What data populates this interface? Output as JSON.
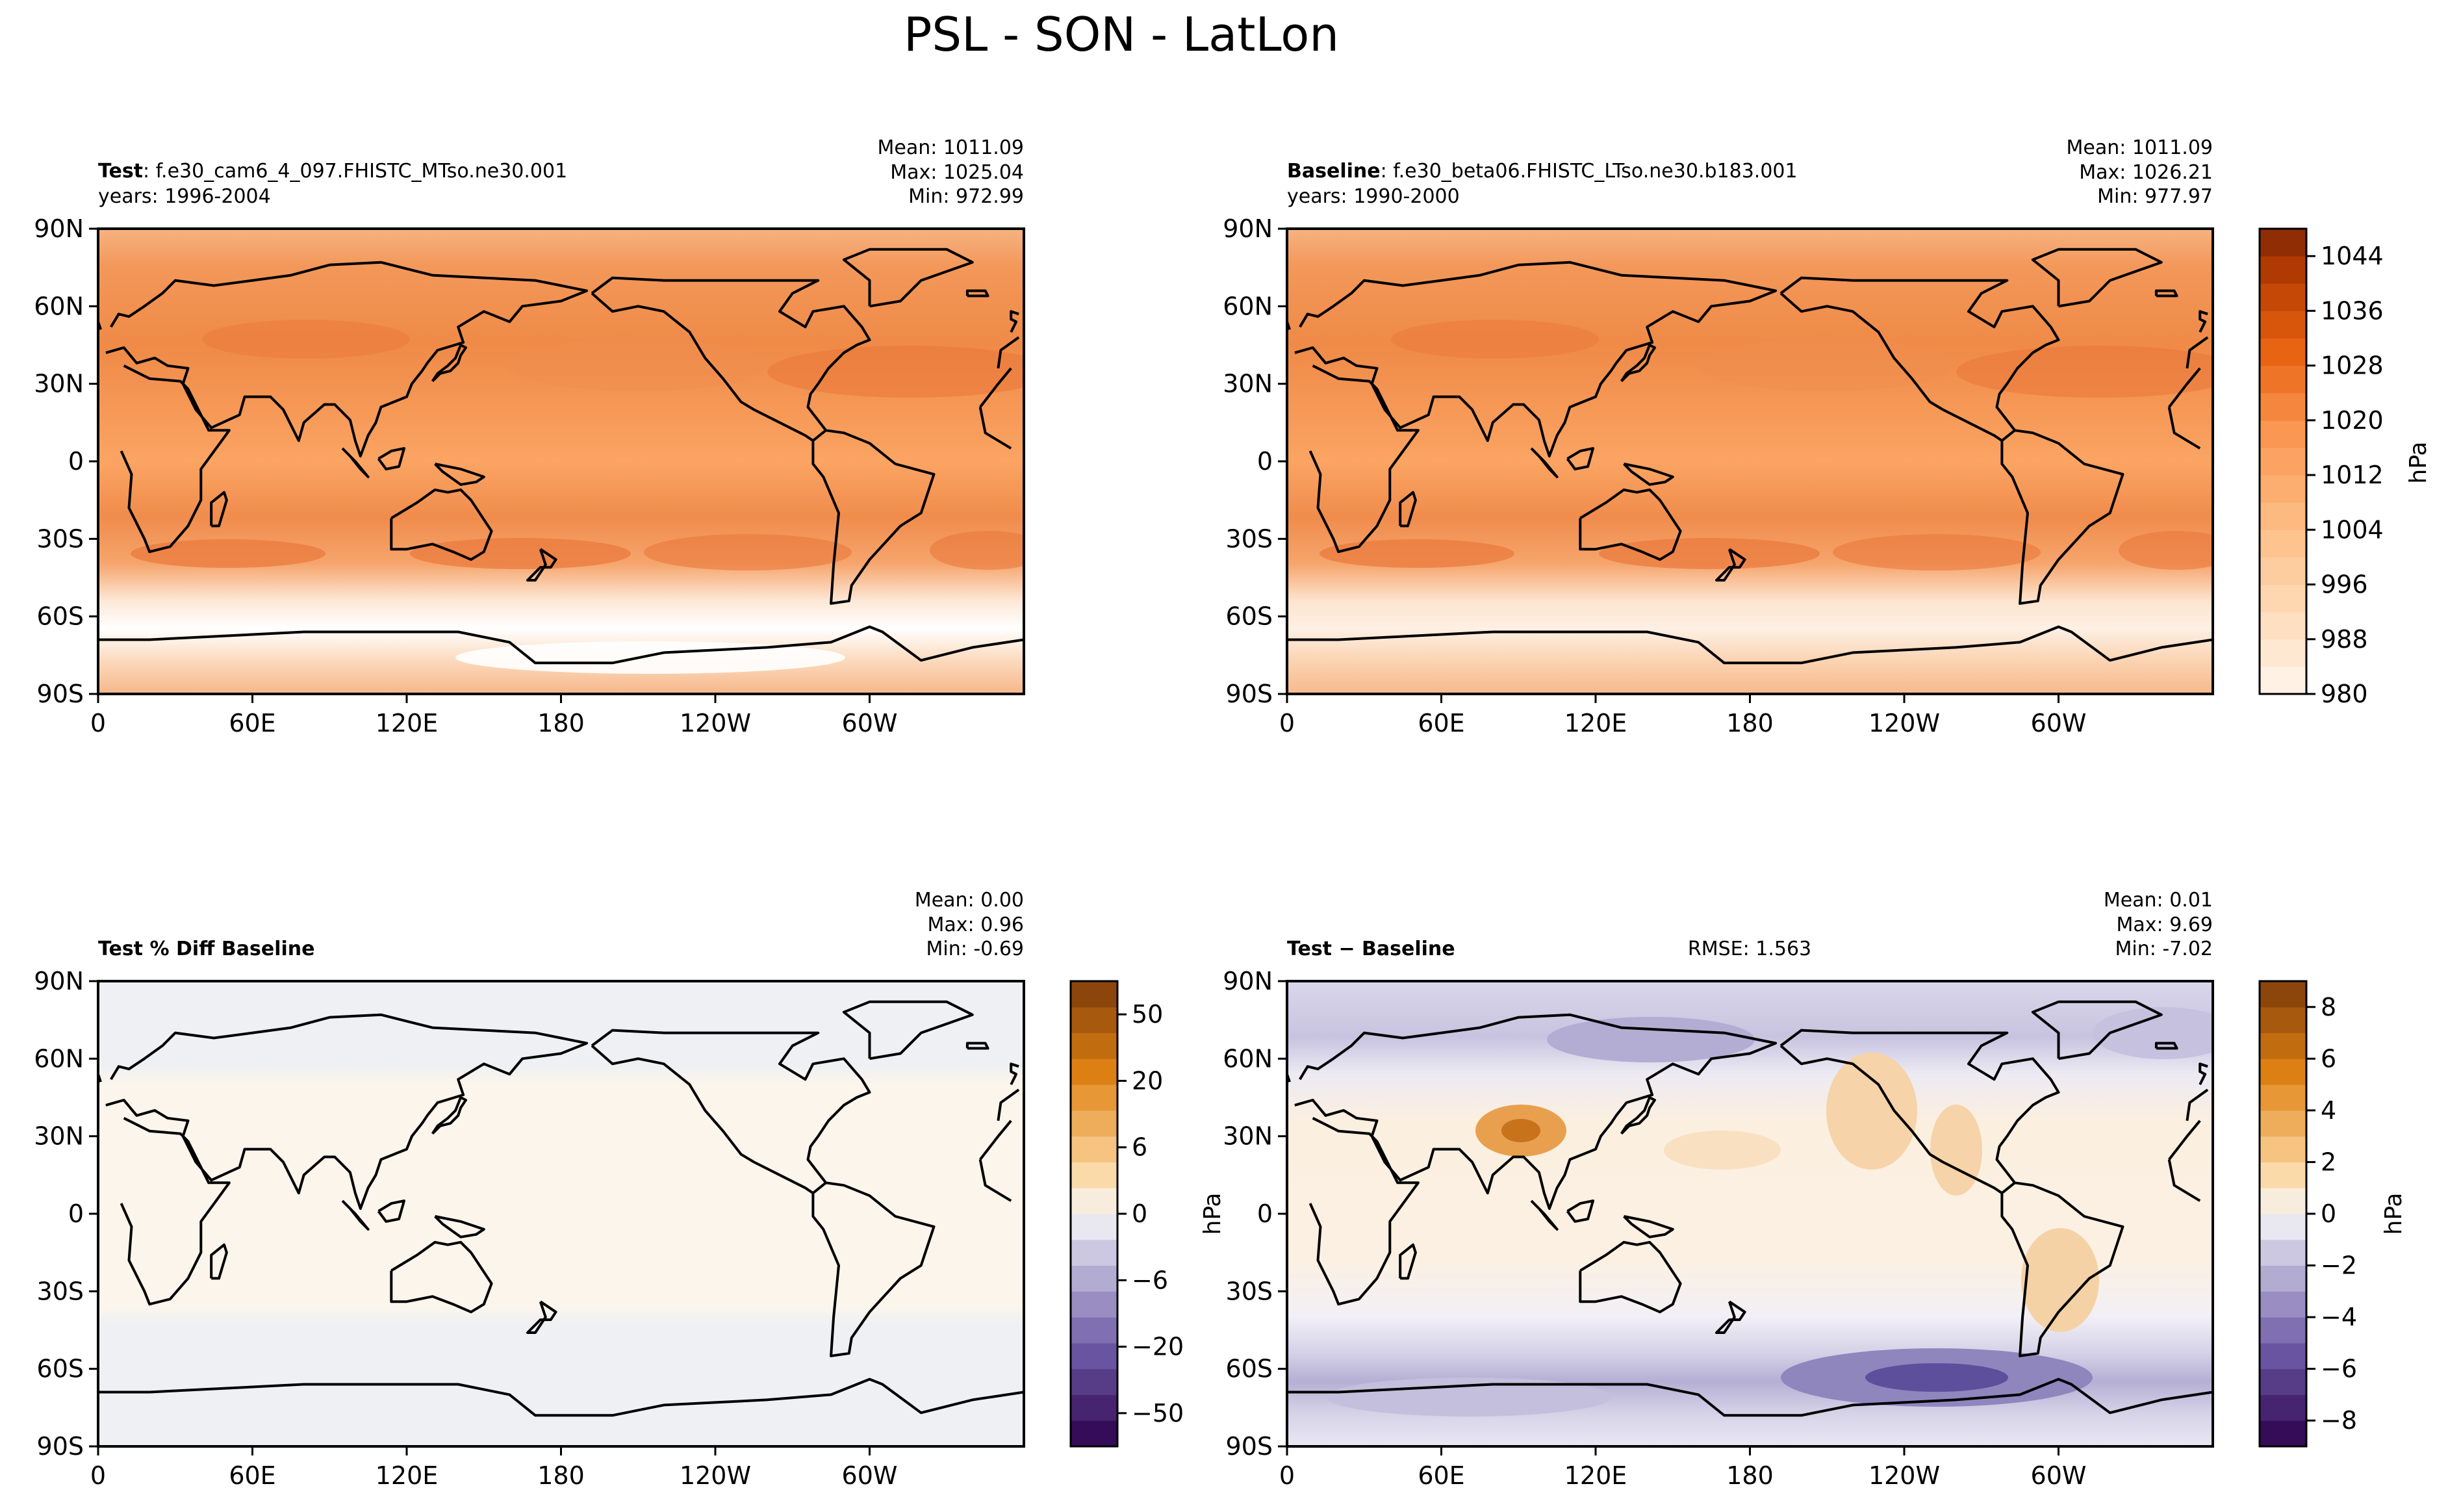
{
  "figure_title": "PSL - SON - LatLon",
  "chart_data": [
    {
      "type": "heatmap",
      "variable": "PSL",
      "panel": "test",
      "label_bold": "Test",
      "label_rest": ": f.e30_cam6_4_097.FHISTC_MTso.ne30.001",
      "years": "years: 1996-2004",
      "stats": [
        "Mean: 1011.09",
        "Max: 1025.04",
        "Min: 972.99"
      ],
      "x_ticks": [
        "0",
        "60E",
        "120E",
        "180",
        "120W",
        "60W"
      ],
      "y_ticks": [
        "90N",
        "60N",
        "30N",
        "0",
        "30S",
        "60S",
        "90S"
      ],
      "xlim": [
        0,
        360
      ],
      "ylim": [
        -90,
        90
      ],
      "colormap": "oranges"
    },
    {
      "type": "heatmap",
      "variable": "PSL",
      "panel": "baseline",
      "label_bold": "Baseline",
      "label_rest": ": f.e30_beta06.FHISTC_LTso.ne30.b183.001",
      "years": "years: 1990-2000",
      "stats": [
        "Mean: 1011.09",
        "Max: 1026.21",
        "Min: 977.97"
      ],
      "x_ticks": [
        "0",
        "60E",
        "120E",
        "180",
        "120W",
        "60W"
      ],
      "y_ticks": [
        "90N",
        "60N",
        "30N",
        "0",
        "30S",
        "60S",
        "90S"
      ],
      "xlim": [
        0,
        360
      ],
      "ylim": [
        -90,
        90
      ],
      "colormap": "oranges",
      "colorbar": {
        "label": "hPa",
        "range": [
          980,
          1048
        ],
        "ticks": [
          "980",
          "988",
          "996",
          "1004",
          "1012",
          "1020",
          "1028",
          "1036",
          "1044"
        ],
        "tick_values": [
          980,
          988,
          996,
          1004,
          1012,
          1020,
          1028,
          1036,
          1044
        ],
        "levels": 17
      }
    },
    {
      "type": "heatmap",
      "variable": "PSL",
      "panel": "pct_diff",
      "label_bold": "Test % Diff Baseline",
      "label_rest": "",
      "stats": [
        "Mean:  0.00",
        "Max:  0.96",
        "Min: -0.69"
      ],
      "x_ticks": [
        "0",
        "60E",
        "120E",
        "180",
        "120W",
        "60W"
      ],
      "y_ticks": [
        "90N",
        "60N",
        "30N",
        "0",
        "30S",
        "60S",
        "90S"
      ],
      "xlim": [
        0,
        360
      ],
      "ylim": [
        -90,
        90
      ],
      "colormap": "puor",
      "colorbar": {
        "label": "hPa",
        "ticks": [
          "−50",
          "−20",
          "−6",
          "0",
          "6",
          "20",
          "50"
        ],
        "levels": 18
      }
    },
    {
      "type": "heatmap",
      "variable": "PSL",
      "panel": "diff",
      "label_bold": "Test − Baseline",
      "label_rest": "",
      "rmse": "RMSE: 1.563",
      "stats": [
        "Mean:  0.01",
        "Max:  9.69",
        "Min: -7.02"
      ],
      "x_ticks": [
        "0",
        "60E",
        "120E",
        "180",
        "120W",
        "60W"
      ],
      "y_ticks": [
        "90N",
        "60N",
        "30N",
        "0",
        "30S",
        "60S",
        "90S"
      ],
      "xlim": [
        0,
        360
      ],
      "ylim": [
        -90,
        90
      ],
      "colormap": "puor",
      "colorbar": {
        "label": "hPa",
        "range": [
          -9,
          9
        ],
        "ticks": [
          "−8",
          "−6",
          "−4",
          "−2",
          "0",
          "2",
          "4",
          "6",
          "8"
        ],
        "tick_values": [
          -8,
          -6,
          -4,
          -2,
          0,
          2,
          4,
          6,
          8
        ],
        "levels": 18
      }
    }
  ]
}
